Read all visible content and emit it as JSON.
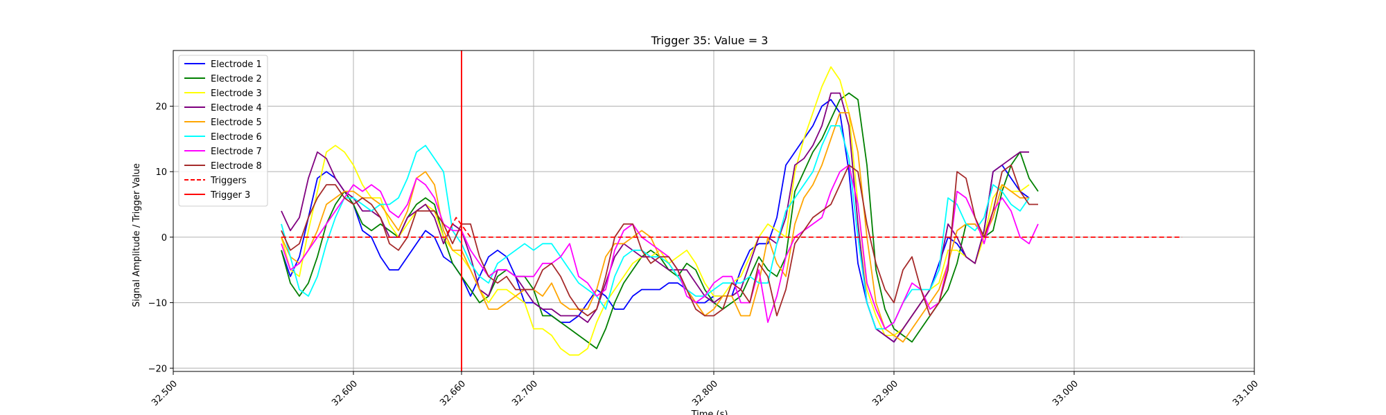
{
  "chart_data": {
    "type": "line",
    "title": "Trigger 35: Value = 3",
    "xlabel": "Time (s)",
    "ylabel": "Signal Amplitude / Trigger Value",
    "xlim": [
      32.5,
      33.1
    ],
    "ylim": [
      -20.5,
      28.5
    ],
    "grid": true,
    "legend_position": "top-left",
    "x_ticks": [
      32.5,
      32.6,
      32.66,
      32.7,
      32.8,
      32.9,
      33.0,
      33.1
    ],
    "x_tick_labels": [
      "32.500",
      "32.600",
      "32.660",
      "32.700",
      "32.800",
      "32.900",
      "33.000",
      "33.100"
    ],
    "y_ticks": [
      -20,
      -10,
      0,
      10,
      20
    ],
    "y_tick_labels": [
      "−20",
      "−10",
      "0",
      "10",
      "20"
    ],
    "x_grid": [
      32.6,
      32.7,
      32.8,
      32.9,
      33.0
    ],
    "y_grid": [
      -20,
      -10,
      0,
      10,
      20
    ],
    "x_start": 32.56,
    "x_step": 0.005,
    "series": [
      {
        "name": "Electrode 1",
        "color": "#0000ff",
        "style": "solid",
        "values": [
          -2,
          -6,
          -3,
          3,
          9,
          10,
          9,
          7,
          5,
          1,
          0,
          -3,
          -5,
          -5,
          -3,
          -1,
          1,
          0,
          -3,
          -4,
          -6,
          -9,
          -6,
          -3,
          -2,
          -3,
          -6,
          -10,
          -10,
          -11,
          -12,
          -13,
          -13,
          -12,
          -10,
          -8,
          -9,
          -11,
          -11,
          -9,
          -8,
          -8,
          -8,
          -7,
          -7,
          -8,
          -10,
          -10,
          -9,
          -9,
          -9,
          -5,
          -2,
          -1,
          -1,
          3,
          11,
          13,
          15,
          17,
          20,
          21,
          19,
          10,
          -4,
          -10,
          -14,
          -15,
          -16,
          -14,
          -12,
          -10,
          -8,
          -4,
          0,
          -1,
          -3,
          -4,
          1,
          10,
          11,
          9,
          7,
          6
        ]
      },
      {
        "name": "Electrode 2",
        "color": "#008000",
        "style": "solid",
        "values": [
          -2,
          -7,
          -9,
          -7,
          -3,
          2,
          5,
          7,
          5,
          2,
          1,
          2,
          1,
          0,
          3,
          5,
          6,
          5,
          0,
          -4,
          -6,
          -8,
          -10,
          -9,
          -6,
          -5,
          -6,
          -6,
          -8,
          -12,
          -12,
          -13,
          -14,
          -15,
          -16,
          -17,
          -14,
          -10,
          -7,
          -5,
          -3,
          -2,
          -3,
          -5,
          -6,
          -4,
          -5,
          -8,
          -10,
          -11,
          -10,
          -9,
          -6,
          -3,
          -5,
          -6,
          -3,
          7,
          10,
          13,
          15,
          18,
          21,
          22,
          21,
          11,
          -5,
          -11,
          -14,
          -15,
          -16,
          -14,
          -12,
          -10,
          -8,
          -4,
          2,
          2,
          0,
          1,
          7,
          11,
          13,
          9,
          7
        ]
      },
      {
        "name": "Electrode 3",
        "color": "#ffff00",
        "style": "solid",
        "values": [
          0,
          -5,
          -6,
          1,
          7,
          13,
          14,
          13,
          11,
          8,
          6,
          6,
          2,
          0,
          2,
          4,
          5,
          4,
          0,
          -2,
          -3,
          -5,
          -8,
          -10,
          -8,
          -8,
          -9,
          -10,
          -14,
          -14,
          -15,
          -17,
          -18,
          -18,
          -17,
          -13,
          -10,
          -8,
          -6,
          -4,
          -3,
          -3,
          -2,
          -4,
          -3,
          -2,
          -4,
          -7,
          -9,
          -9,
          -7,
          -6,
          -3,
          0,
          2,
          1,
          0,
          10,
          15,
          19,
          23,
          26,
          24,
          19,
          5,
          -8,
          -12,
          -15,
          -15,
          -14,
          -12,
          -10,
          -8,
          -7,
          -2,
          -2,
          -3,
          -4,
          0,
          6,
          8,
          7,
          7,
          8
        ]
      },
      {
        "name": "Electrode 4",
        "color": "#800080",
        "style": "solid",
        "values": [
          4,
          1,
          3,
          9,
          13,
          12,
          9,
          7,
          6,
          4,
          4,
          3,
          0,
          0,
          3,
          4,
          5,
          3,
          -1,
          2,
          1,
          -3,
          -8,
          -9,
          -5,
          -5,
          -6,
          -8,
          -10,
          -11,
          -11,
          -12,
          -12,
          -12,
          -13,
          -11,
          -7,
          -3,
          -1,
          -2,
          -3,
          -3,
          -4,
          -5,
          -5,
          -5,
          -7,
          -9,
          -10,
          -9,
          -9,
          -8,
          -4,
          0,
          0,
          -1,
          3,
          11,
          12,
          14,
          17,
          22,
          22,
          17,
          2,
          -10,
          -14,
          -15,
          -16,
          -14,
          -12,
          -10,
          -8,
          -5,
          2,
          0,
          -3,
          -4,
          1,
          10,
          11,
          12,
          13,
          13
        ]
      },
      {
        "name": "Electrode 5",
        "color": "#ffa500",
        "style": "solid",
        "values": [
          0,
          -3,
          -4,
          -2,
          1,
          5,
          6,
          7,
          7,
          6,
          6,
          5,
          3,
          1,
          4,
          9,
          10,
          8,
          1,
          -2,
          -2,
          -5,
          -8,
          -11,
          -11,
          -10,
          -9,
          -8,
          -8,
          -9,
          -7,
          -10,
          -11,
          -11,
          -11,
          -8,
          -3,
          -1,
          -1,
          0,
          1,
          0,
          -3,
          -4,
          -6,
          -8,
          -10,
          -12,
          -11,
          -9,
          -9,
          -12,
          -12,
          -7,
          0,
          -4,
          -6,
          2,
          6,
          8,
          11,
          15,
          19,
          19,
          13,
          0,
          -10,
          -14,
          -15,
          -16,
          -14,
          -12,
          -10,
          -8,
          -4,
          1,
          2,
          2,
          0,
          3,
          8,
          7,
          6,
          6
        ]
      },
      {
        "name": "Electrode 6",
        "color": "#00ffff",
        "style": "solid",
        "values": [
          2,
          -3,
          -8,
          -9,
          -6,
          -1,
          3,
          6,
          6,
          5,
          4,
          5,
          5,
          6,
          9,
          13,
          14,
          12,
          10,
          1,
          -1,
          -4,
          -6,
          -7,
          -4,
          -3,
          -2,
          -1,
          -2,
          -1,
          -1,
          -3,
          -5,
          -7,
          -8,
          -9,
          -11,
          -6,
          -3,
          -2,
          -2,
          -3,
          -3,
          -4,
          -6,
          -8,
          -9,
          -9,
          -8,
          -7,
          -7,
          -7,
          -6,
          -7,
          -7,
          -1,
          4,
          6,
          8,
          10,
          14,
          17,
          17,
          12,
          0,
          -10,
          -14,
          -14,
          -13,
          -10,
          -8,
          -8,
          -8,
          -5,
          6,
          5,
          2,
          1,
          3,
          8,
          7,
          5,
          4,
          6
        ]
      },
      {
        "name": "Electrode 7",
        "color": "#ff00ff",
        "style": "solid",
        "values": [
          -1,
          -5,
          -4,
          -2,
          0,
          2,
          4,
          6,
          8,
          7,
          8,
          7,
          4,
          3,
          5,
          9,
          8,
          6,
          2,
          1,
          1,
          -2,
          -4,
          -6,
          -5,
          -5,
          -6,
          -6,
          -6,
          -4,
          -4,
          -3,
          -1,
          -6,
          -7,
          -9,
          -8,
          -2,
          1,
          2,
          0,
          -1,
          -2,
          -3,
          -5,
          -9,
          -10,
          -9,
          -7,
          -6,
          -6,
          -10,
          -10,
          -5,
          -13,
          -9,
          -3,
          0,
          1,
          2,
          3,
          7,
          10,
          11,
          5,
          -7,
          -11,
          -14,
          -13,
          -10,
          -7,
          -8,
          -11,
          -10,
          -4,
          7,
          6,
          3,
          -1,
          4,
          6,
          4,
          0,
          -1,
          2
        ]
      },
      {
        "name": "Electrode 8",
        "color": "#a52a2a",
        "style": "solid",
        "values": [
          1,
          -2,
          -1,
          3,
          6,
          8,
          8,
          6,
          5,
          6,
          5,
          3,
          -1,
          -2,
          0,
          4,
          4,
          4,
          2,
          -1,
          2,
          2,
          -3,
          -6,
          -7,
          -6,
          -8,
          -8,
          -8,
          -5,
          -4,
          -6,
          -9,
          -11,
          -12,
          -11,
          -6,
          0,
          2,
          2,
          -2,
          -4,
          -3,
          -3,
          -5,
          -8,
          -11,
          -12,
          -12,
          -11,
          -7,
          -8,
          -10,
          -4,
          -6,
          -12,
          -8,
          -1,
          1,
          3,
          4,
          5,
          8,
          11,
          10,
          2,
          -4,
          -8,
          -10,
          -5,
          -3,
          -8,
          -12,
          -10,
          -5,
          10,
          9,
          3,
          0,
          4,
          10,
          11,
          7,
          5,
          5
        ]
      },
      {
        "name": "Triggers",
        "color": "#ff0000",
        "style": "dashed",
        "x": [
          32.56,
          32.651,
          32.657,
          32.665,
          33.06
        ],
        "values": [
          0,
          0,
          3,
          0,
          0
        ]
      }
    ],
    "vertical_lines": [
      {
        "name": "Trigger 3",
        "x": 32.66,
        "color": "#ff0000"
      }
    ]
  }
}
